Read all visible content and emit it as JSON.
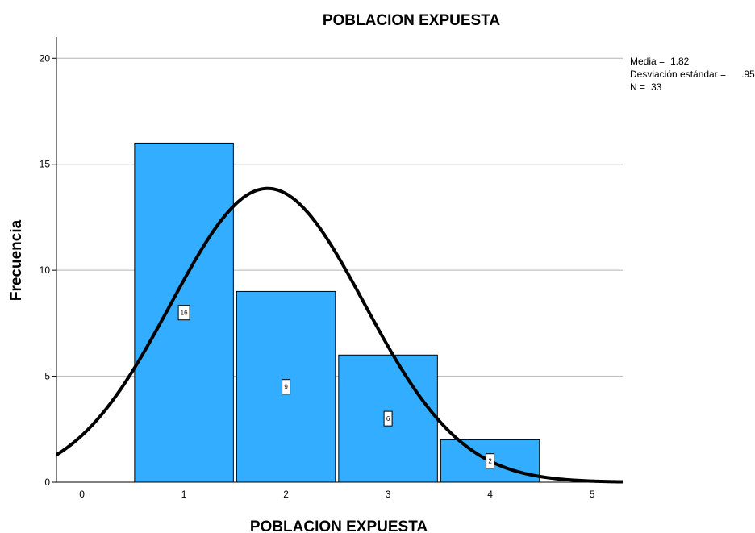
{
  "chart_data": {
    "type": "bar",
    "title": "POBLACION EXPUESTA",
    "xlabel": "POBLACION EXPUESTA",
    "ylabel": "Frecuencia",
    "categories": [
      "1",
      "2",
      "3",
      "4"
    ],
    "values": [
      16,
      9,
      6,
      2
    ],
    "data_labels": [
      "16",
      "9",
      "6",
      "2"
    ],
    "x_ticks": [
      "0",
      "1",
      "2",
      "3",
      "4",
      "5"
    ],
    "y_ticks": [
      "0",
      "5",
      "10",
      "15",
      "20"
    ],
    "xlim": [
      -0.25,
      5.3
    ],
    "ylim": [
      0,
      21
    ],
    "grid": true,
    "bar_color": "#33adff",
    "curve": {
      "type": "normal",
      "mean": 1.82,
      "sd": 0.95,
      "n": 33,
      "bin_width": 1,
      "color": "#000000"
    },
    "stats": {
      "mean_label": "Media =",
      "mean_value": "1.82",
      "sd_label": "Desviación estándar =",
      "sd_value": ".95",
      "n_label": "N =",
      "n_value": "33"
    }
  }
}
